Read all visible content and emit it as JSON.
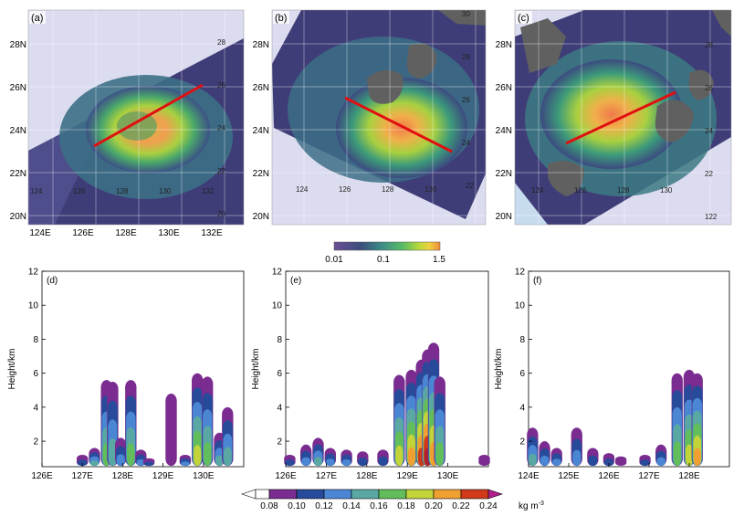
{
  "colors": {
    "map_bg": "#dcdcf0",
    "map_grid": "#ffffff",
    "land": "#606060",
    "track": "#e01010",
    "plot_frame": "#000000"
  },
  "top_colorbar": {
    "ticks": [
      "0.01",
      "0.1",
      "1.5"
    ],
    "colors": [
      "#4b3a80",
      "#4b5d8c",
      "#3f8c8a",
      "#56b86a",
      "#a0d23a",
      "#f0d040",
      "#f58a3a"
    ]
  },
  "maps": [
    {
      "label": "(a)",
      "lat_ticks": [
        "28N",
        "26N",
        "24N",
        "22N",
        "20N"
      ],
      "lon_ticks": [
        "124E",
        "126E",
        "128E",
        "130E",
        "132E"
      ],
      "inner_labels": [
        "28",
        "26",
        "24",
        "22",
        "20",
        "124",
        "126",
        "128",
        "130",
        "132"
      ]
    },
    {
      "label": "(b)",
      "lat_ticks": [
        "28N",
        "26N",
        "24N",
        "22N",
        "20N"
      ],
      "lon_ticks": [],
      "inner_labels": [
        "30",
        "28",
        "26",
        "24",
        "22",
        "124",
        "126",
        "128",
        "130"
      ]
    },
    {
      "label": "(c)",
      "lat_ticks": [
        "28N",
        "26N",
        "24N",
        "22N",
        "20N"
      ],
      "lon_ticks": [],
      "inner_labels": [
        "28",
        "26",
        "24",
        "22",
        "122",
        "124",
        "126",
        "128",
        "130"
      ]
    }
  ],
  "chart_data": [
    {
      "type": "heatmap",
      "label": "(d)",
      "ylabel": "Height/km",
      "ylim": [
        0.5,
        12
      ],
      "yticks": [
        "2",
        "4",
        "6",
        "8",
        "10",
        "12"
      ],
      "xticks": [
        "126E",
        "127E",
        "128E",
        "129E",
        "130E"
      ],
      "columns": [
        {
          "x": 127.0,
          "top": 1.2,
          "peak": 0.11
        },
        {
          "x": 127.3,
          "top": 1.6,
          "peak": 0.14
        },
        {
          "x": 127.6,
          "top": 5.6,
          "peak": 0.16
        },
        {
          "x": 127.75,
          "top": 5.5,
          "peak": 0.14
        },
        {
          "x": 127.95,
          "top": 2.2,
          "peak": 0.12
        },
        {
          "x": 128.2,
          "top": 5.6,
          "peak": 0.17
        },
        {
          "x": 128.45,
          "top": 1.5,
          "peak": 0.13
        },
        {
          "x": 128.65,
          "top": 1.0,
          "peak": 0.1
        },
        {
          "x": 129.2,
          "top": 4.8,
          "peak": 0.09
        },
        {
          "x": 129.55,
          "top": 1.2,
          "peak": 0.12
        },
        {
          "x": 129.85,
          "top": 6.0,
          "peak": 0.18
        },
        {
          "x": 130.1,
          "top": 5.8,
          "peak": 0.16
        },
        {
          "x": 130.4,
          "top": 2.5,
          "peak": 0.15
        },
        {
          "x": 130.6,
          "top": 4.0,
          "peak": 0.14
        }
      ]
    },
    {
      "type": "heatmap",
      "label": "(e)",
      "ylabel": "Height/km",
      "ylim": [
        0.5,
        12
      ],
      "yticks": [
        "2",
        "4",
        "6",
        "8",
        "10",
        "12"
      ],
      "xticks": [
        "126E",
        "127E",
        "128E",
        "129E",
        "130E"
      ],
      "columns": [
        {
          "x": 126.1,
          "top": 1.2,
          "peak": 0.1
        },
        {
          "x": 126.5,
          "top": 1.8,
          "peak": 0.13
        },
        {
          "x": 126.8,
          "top": 2.2,
          "peak": 0.15
        },
        {
          "x": 127.1,
          "top": 1.6,
          "peak": 0.12
        },
        {
          "x": 127.5,
          "top": 1.5,
          "peak": 0.12
        },
        {
          "x": 127.9,
          "top": 1.4,
          "peak": 0.11
        },
        {
          "x": 128.4,
          "top": 1.5,
          "peak": 0.1
        },
        {
          "x": 128.8,
          "top": 5.9,
          "peak": 0.18
        },
        {
          "x": 129.1,
          "top": 6.2,
          "peak": 0.2
        },
        {
          "x": 129.35,
          "top": 6.8,
          "peak": 0.22
        },
        {
          "x": 129.5,
          "top": 7.4,
          "peak": 0.24
        },
        {
          "x": 129.65,
          "top": 7.8,
          "peak": 0.2
        },
        {
          "x": 129.8,
          "top": 5.8,
          "peak": 0.16
        },
        {
          "x": 130.9,
          "top": 1.2,
          "peak": 0.09
        }
      ]
    },
    {
      "type": "heatmap",
      "label": "(f)",
      "ylabel": "Height/km",
      "ylim": [
        0.5,
        12
      ],
      "yticks": [
        "2",
        "4",
        "6",
        "8",
        "10",
        "12"
      ],
      "xticks": [
        "124E",
        "125E",
        "126E",
        "127E",
        "128E"
      ],
      "columns": [
        {
          "x": 124.1,
          "top": 2.8,
          "peak": 0.14
        },
        {
          "x": 124.4,
          "top": 2.0,
          "peak": 0.13
        },
        {
          "x": 124.7,
          "top": 1.6,
          "peak": 0.12
        },
        {
          "x": 125.2,
          "top": 2.8,
          "peak": 0.12
        },
        {
          "x": 125.6,
          "top": 1.6,
          "peak": 0.11
        },
        {
          "x": 126.0,
          "top": 1.3,
          "peak": 0.1
        },
        {
          "x": 126.3,
          "top": 1.1,
          "peak": 0.09
        },
        {
          "x": 126.9,
          "top": 1.2,
          "peak": 0.1
        },
        {
          "x": 127.3,
          "top": 1.8,
          "peak": 0.12
        },
        {
          "x": 127.7,
          "top": 6.0,
          "peak": 0.16
        },
        {
          "x": 128.0,
          "top": 6.2,
          "peak": 0.18
        },
        {
          "x": 128.2,
          "top": 6.0,
          "peak": 0.2
        }
      ]
    }
  ],
  "bottom_colorbar": {
    "ticks": [
      "0.08",
      "0.10",
      "0.12",
      "0.14",
      "0.16",
      "0.18",
      "0.20",
      "0.22",
      "0.24"
    ],
    "unit_text": "kg m",
    "unit_exp": "-3",
    "levels": [
      0.08,
      0.1,
      0.12,
      0.14,
      0.16,
      0.18,
      0.2,
      0.22,
      0.24
    ],
    "colors": [
      "#ffffff",
      "#7a2c90",
      "#284a9a",
      "#4a86d4",
      "#5aa8a4",
      "#62be5a",
      "#c2d43a",
      "#f0a030",
      "#d03a1a",
      "#b02030",
      "#c0208a"
    ]
  }
}
